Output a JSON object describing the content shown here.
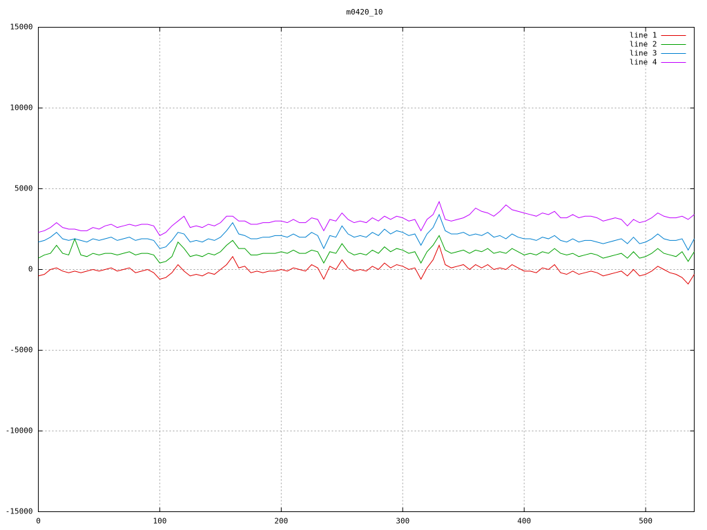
{
  "chart_data": {
    "type": "line",
    "title": "m0420_10",
    "x": [
      0,
      5,
      10,
      15,
      20,
      25,
      30,
      35,
      40,
      45,
      50,
      55,
      60,
      65,
      70,
      75,
      80,
      85,
      90,
      95,
      100,
      105,
      110,
      115,
      120,
      125,
      130,
      135,
      140,
      145,
      150,
      155,
      160,
      165,
      170,
      175,
      180,
      185,
      190,
      195,
      200,
      205,
      210,
      215,
      220,
      225,
      230,
      235,
      240,
      245,
      250,
      255,
      260,
      265,
      270,
      275,
      280,
      285,
      290,
      295,
      300,
      305,
      310,
      315,
      320,
      325,
      330,
      335,
      340,
      345,
      350,
      355,
      360,
      365,
      370,
      375,
      380,
      385,
      390,
      395,
      400,
      405,
      410,
      415,
      420,
      425,
      430,
      435,
      440,
      445,
      450,
      455,
      460,
      465,
      470,
      475,
      480,
      485,
      490,
      495,
      500,
      505,
      510,
      515,
      520,
      525,
      530,
      535,
      540
    ],
    "series": [
      {
        "name": "line 1",
        "color": "#e00000",
        "values": [
          -400,
          -300,
          0,
          100,
          -100,
          -200,
          -100,
          -200,
          -100,
          0,
          -100,
          0,
          100,
          -100,
          0,
          100,
          -200,
          -100,
          0,
          -200,
          -600,
          -500,
          -200,
          300,
          -100,
          -400,
          -300,
          -400,
          -200,
          -300,
          0,
          300,
          800,
          100,
          200,
          -200,
          -100,
          -200,
          -100,
          -100,
          0,
          -100,
          100,
          0,
          -100,
          300,
          100,
          -600,
          200,
          0,
          600,
          100,
          -100,
          0,
          -100,
          200,
          0,
          400,
          100,
          300,
          200,
          0,
          100,
          -600,
          100,
          600,
          1500,
          300,
          100,
          200,
          300,
          0,
          300,
          100,
          300,
          0,
          100,
          0,
          300,
          100,
          -100,
          -100,
          -200,
          100,
          0,
          300,
          -200,
          -300,
          -100,
          -300,
          -200,
          -100,
          -200,
          -400,
          -300,
          -200,
          -100,
          -400,
          0,
          -400,
          -300,
          -100,
          200,
          0,
          -200,
          -300,
          -500,
          -900,
          -300
        ]
      },
      {
        "name": "line 2",
        "color": "#00a000",
        "values": [
          700,
          900,
          1000,
          1500,
          1000,
          900,
          1900,
          900,
          800,
          1000,
          900,
          1000,
          1000,
          900,
          1000,
          1100,
          900,
          1000,
          1000,
          900,
          400,
          500,
          800,
          1700,
          1300,
          800,
          900,
          800,
          1000,
          900,
          1100,
          1500,
          1800,
          1300,
          1300,
          900,
          900,
          1000,
          1000,
          1000,
          1100,
          1000,
          1200,
          1000,
          1000,
          1200,
          1100,
          400,
          1100,
          1000,
          1600,
          1100,
          900,
          1000,
          900,
          1200,
          1000,
          1400,
          1100,
          1300,
          1200,
          1000,
          1100,
          400,
          1100,
          1500,
          2100,
          1200,
          1000,
          1100,
          1200,
          1000,
          1200,
          1100,
          1300,
          1000,
          1100,
          1000,
          1300,
          1100,
          900,
          1000,
          900,
          1100,
          1000,
          1300,
          1000,
          900,
          1000,
          800,
          900,
          1000,
          900,
          700,
          800,
          900,
          1000,
          700,
          1100,
          700,
          800,
          1000,
          1300,
          1000,
          900,
          800,
          1100,
          500,
          1100
        ]
      },
      {
        "name": "line 3",
        "color": "#0080d0",
        "values": [
          1700,
          1800,
          2000,
          2300,
          1900,
          1800,
          1900,
          1800,
          1700,
          1900,
          1800,
          1900,
          2000,
          1800,
          1900,
          2000,
          1800,
          1900,
          1900,
          1800,
          1300,
          1400,
          1800,
          2300,
          2200,
          1700,
          1800,
          1700,
          1900,
          1800,
          2000,
          2400,
          2900,
          2200,
          2100,
          1900,
          1900,
          2000,
          2000,
          2100,
          2100,
          2000,
          2200,
          2000,
          2000,
          2300,
          2100,
          1300,
          2100,
          2000,
          2700,
          2200,
          2000,
          2100,
          2000,
          2300,
          2100,
          2500,
          2200,
          2400,
          2300,
          2100,
          2200,
          1500,
          2200,
          2600,
          3400,
          2400,
          2200,
          2200,
          2300,
          2100,
          2200,
          2100,
          2300,
          2000,
          2100,
          1900,
          2200,
          2000,
          1900,
          1900,
          1800,
          2000,
          1900,
          2100,
          1800,
          1700,
          1900,
          1700,
          1800,
          1800,
          1700,
          1600,
          1700,
          1800,
          1900,
          1600,
          2000,
          1600,
          1700,
          1900,
          2200,
          1900,
          1800,
          1800,
          1900,
          1200,
          1900
        ]
      },
      {
        "name": "line 4",
        "color": "#c000ff",
        "values": [
          2300,
          2400,
          2600,
          2900,
          2600,
          2500,
          2500,
          2400,
          2400,
          2600,
          2500,
          2700,
          2800,
          2600,
          2700,
          2800,
          2700,
          2800,
          2800,
          2700,
          2100,
          2300,
          2700,
          3000,
          3300,
          2600,
          2700,
          2600,
          2800,
          2700,
          2900,
          3300,
          3300,
          3000,
          3000,
          2800,
          2800,
          2900,
          2900,
          3000,
          3000,
          2900,
          3100,
          2900,
          2900,
          3200,
          3100,
          2400,
          3100,
          3000,
          3500,
          3100,
          2900,
          3000,
          2900,
          3200,
          3000,
          3300,
          3100,
          3300,
          3200,
          3000,
          3100,
          2400,
          3100,
          3400,
          4200,
          3100,
          3000,
          3100,
          3200,
          3400,
          3800,
          3600,
          3500,
          3300,
          3600,
          4000,
          3700,
          3600,
          3500,
          3400,
          3300,
          3500,
          3400,
          3600,
          3200,
          3200,
          3400,
          3200,
          3300,
          3300,
          3200,
          3000,
          3100,
          3200,
          3100,
          2700,
          3100,
          2900,
          3000,
          3200,
          3500,
          3300,
          3200,
          3200,
          3300,
          3100,
          3400
        ]
      }
    ],
    "xlim": [
      0,
      540
    ],
    "xticks": [
      0,
      100,
      200,
      300,
      400,
      500
    ],
    "ylim": [
      -15000,
      15000
    ],
    "yticks": [
      -15000,
      -10000,
      -5000,
      0,
      5000,
      10000,
      15000
    ],
    "grid": true,
    "legend": "top-right"
  }
}
